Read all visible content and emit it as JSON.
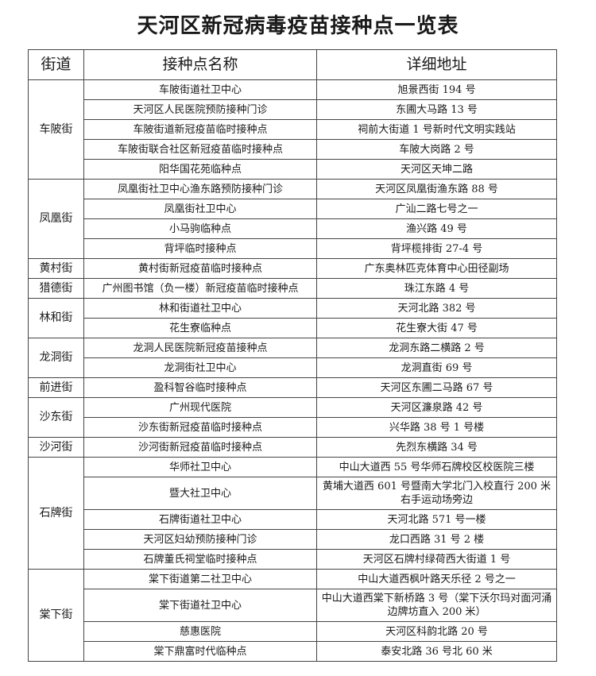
{
  "title": "天河区新冠病毒疫苗接种点一览表",
  "headers": [
    "街道",
    "接种点名称",
    "详细地址"
  ],
  "groups": [
    {
      "street": "车陂街",
      "entries": [
        {
          "name": "车陂街道社卫中心",
          "address": "旭景西街 194 号"
        },
        {
          "name": "天河区人民医院预防接种门诊",
          "address": "东圃大马路 13 号"
        },
        {
          "name": "车陂街道新冠疫苗临时接种点",
          "address": "祠前大街道 1 号新时代文明实践站"
        },
        {
          "name": "车陂街联合社区新冠疫苗临时接种点",
          "address": "车陂大岗路 2 号"
        },
        {
          "name": "阳华国花苑临种点",
          "address": "天河区天坤二路"
        }
      ]
    },
    {
      "street": "凤凰街",
      "entries": [
        {
          "name": "凤凰街社卫中心渔东路预防接种门诊",
          "address": "天河区凤凰街渔东路 88 号"
        },
        {
          "name": "凤凰街社卫中心",
          "address": "广汕二路七号之一"
        },
        {
          "name": "小马驹临种点",
          "address": "渔兴路 49 号"
        },
        {
          "name": "背坪临时接种点",
          "address": "背坪榄排街 27-4 号"
        }
      ]
    },
    {
      "street": "黄村街",
      "entries": [
        {
          "name": "黄村街新冠疫苗临时接种点",
          "address": "广东奥林匹克体育中心田径副场"
        }
      ]
    },
    {
      "street": "猎德街",
      "entries": [
        {
          "name": "广州图书馆（负一楼）新冠疫苗临时接种点",
          "address": "珠江东路 4 号"
        }
      ]
    },
    {
      "street": "林和街",
      "entries": [
        {
          "name": "林和街道社卫中心",
          "address": "天河北路 382 号"
        },
        {
          "name": "花生寮临种点",
          "address": "花生寮大街 47 号"
        }
      ]
    },
    {
      "street": "龙洞街",
      "entries": [
        {
          "name": "龙洞人民医院新冠疫苗接种点",
          "address": "龙洞东路二横路 2 号"
        },
        {
          "name": "龙洞街社卫中心",
          "address": "龙洞直街 69 号"
        }
      ]
    },
    {
      "street": "前进街",
      "entries": [
        {
          "name": "盈科智谷临时接种点",
          "address": "天河区东圃二马路 67 号"
        }
      ]
    },
    {
      "street": "沙东街",
      "entries": [
        {
          "name": "广州现代医院",
          "address": "天河区濂泉路 42 号"
        },
        {
          "name": "沙东街新冠疫苗临时接种点",
          "address": "兴华路 38 号 1 号楼"
        }
      ]
    },
    {
      "street": "沙河街",
      "entries": [
        {
          "name": "沙河街新冠疫苗临时接种点",
          "address": "先烈东横路 34 号"
        }
      ]
    },
    {
      "street": "石牌街",
      "entries": [
        {
          "name": "华师社卫中心",
          "address": "中山大道西 55 号华师石牌校区校医院三楼"
        },
        {
          "name": "暨大社卫中心",
          "address": "黄埔大道西 601 号暨南大学北门入校直行 200 米右手运动场旁边"
        },
        {
          "name": "石牌街道社卫中心",
          "address": "天河北路 571 号一楼"
        },
        {
          "name": "天河区妇幼预防接种门诊",
          "address": "龙口西路 31 号 2 楼"
        },
        {
          "name": "石牌董氏祠堂临时接种点",
          "address": "天河区石牌村绿荷西大街道 1 号"
        }
      ]
    },
    {
      "street": "棠下街",
      "entries": [
        {
          "name": "棠下街道第二社卫中心",
          "address": "中山大道西枫叶路天乐径 2 号之一"
        },
        {
          "name": "棠下街道社卫中心",
          "address": "中山大道西棠下新桥路 3 号（棠下沃尔玛对面河涌边牌坊直入 200 米）"
        },
        {
          "name": "慈惠医院",
          "address": "天河区科韵北路 20 号"
        },
        {
          "name": "棠下鼎富时代临种点",
          "address": "泰安北路 36 号北 60 米"
        }
      ]
    }
  ]
}
